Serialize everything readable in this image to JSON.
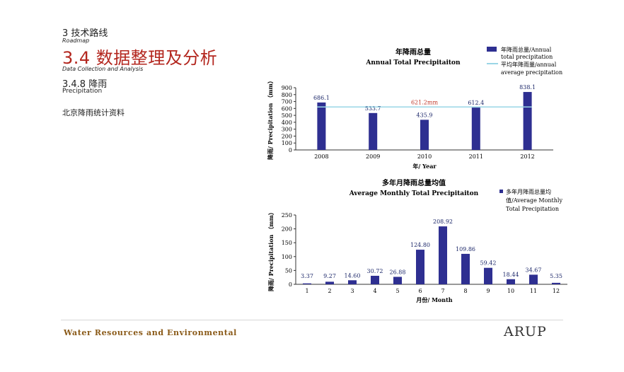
{
  "header": {
    "section": "3 技术路线",
    "section_en": "Roadmap",
    "subsection": "3.4 数据整理及分析",
    "subsection_en": "Data Collection and Analysis",
    "item": "3.4.8 降雨",
    "item_en": "Precipitation",
    "note": "北京降雨统计资料"
  },
  "footer": {
    "left": "Water Resources and Environmental",
    "right": "ARUP"
  },
  "colors": {
    "bar": "#2e2f91",
    "avg_line": "#9ad6e6",
    "avg_label": "#c0392b",
    "title": "#b3261e"
  },
  "chart_data": [
    {
      "type": "bar",
      "title": "年降雨总量",
      "subtitle": "Annual Total Precipitaiton",
      "xlabel": "年/ Year",
      "ylabel": "降雨/ Precipitation （mm）",
      "categories": [
        "2008",
        "2009",
        "2010",
        "2011",
        "2012"
      ],
      "series": [
        {
          "name": "年降雨总量/Annual total precipitation",
          "values": [
            686.1,
            533.7,
            435.9,
            612.4,
            838.1
          ]
        }
      ],
      "value_labels": [
        "686.1",
        "533.7",
        "435.9",
        "612.4",
        "838.1"
      ],
      "average": {
        "name": "平均年降雨量/annual average precipitation",
        "value": 621.2,
        "label": "621.2mm"
      },
      "legend": [
        "年降雨总量/Annual",
        "total precipitation",
        "平均年降雨量/annual",
        "average precipitation"
      ],
      "ylim": [
        0,
        900
      ],
      "yticks": [
        "0",
        "100",
        "200",
        "300",
        "400",
        "500",
        "600",
        "700",
        "800",
        "900"
      ],
      "legend_position": "top-right"
    },
    {
      "type": "bar",
      "title": "多年月降雨总量均值",
      "subtitle": "Average Monthly Total Precipitaiton",
      "xlabel": "月份/ Month",
      "ylabel": "降雨/ Precipitation （mm）",
      "categories": [
        "1",
        "2",
        "3",
        "4",
        "5",
        "6",
        "7",
        "8",
        "9",
        "10",
        "11",
        "12"
      ],
      "series": [
        {
          "name": "多年月降雨总量均值/Average Monthly Total Precipitation",
          "values": [
            3.37,
            9.27,
            14.6,
            30.72,
            26.88,
            124.8,
            208.92,
            109.86,
            59.42,
            18.44,
            34.67,
            5.35
          ]
        }
      ],
      "value_labels": [
        "3.37",
        "9.27",
        "14.60",
        "30.72",
        "26.88",
        "124.80",
        "208.92",
        "109.86",
        "59.42",
        "18.44",
        "34.67",
        "5.35"
      ],
      "legend": [
        "多年月降雨总量均",
        "值/Average Monthly",
        "Total Precipitation"
      ],
      "ylim": [
        0,
        250
      ],
      "yticks": [
        "0",
        "50",
        "100",
        "150",
        "200",
        "250"
      ],
      "legend_position": "top-right"
    }
  ]
}
